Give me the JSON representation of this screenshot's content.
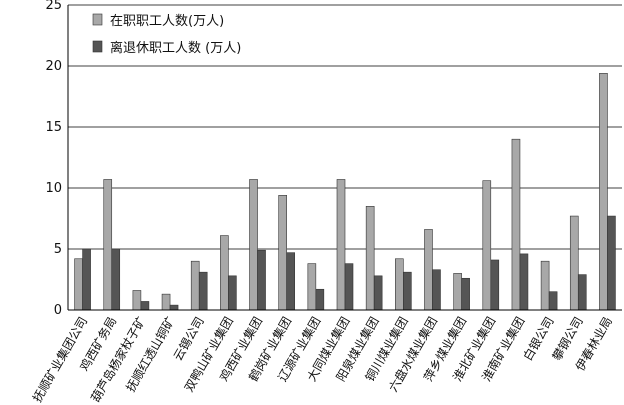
{
  "colors": {
    "series1": "#a8a8a8",
    "series2": "#555555",
    "grid": "#000000"
  },
  "chart_data": {
    "type": "bar",
    "title": "",
    "xlabel": "",
    "ylabel": "",
    "ylim": [
      0,
      25
    ],
    "yticks": [
      0,
      5,
      10,
      15,
      20,
      25
    ],
    "grid": true,
    "legend": "top-left",
    "categories": [
      "抚顺矿业集团公司",
      "鸡西矿务局",
      "葫芦岛杨家杖子矿",
      "抚顺红透山铜矿",
      "云锡公司",
      "双鸭山矿业集团",
      "鸡西矿业集团",
      "鹤岗矿业集团",
      "辽源矿业集团",
      "大同煤业集团",
      "阳泉煤业集团",
      "铜川煤业集团",
      "六盘水煤业集团",
      "萍乡煤业集团",
      "淮北矿业集团",
      "淮南矿业集团",
      "白银公司",
      "攀钢公司",
      "伊春林业局"
    ],
    "series": [
      {
        "name": "在职职工人数(万人)",
        "values": [
          4.2,
          10.7,
          1.6,
          1.3,
          4.0,
          6.1,
          10.7,
          9.4,
          3.8,
          10.7,
          8.5,
          4.2,
          6.6,
          3.0,
          10.6,
          14.0,
          4.0,
          7.7,
          19.4
        ]
      },
      {
        "name": "离退休职工人数 (万人)",
        "values": [
          5.0,
          5.0,
          0.7,
          0.4,
          3.1,
          2.8,
          4.9,
          4.7,
          1.7,
          3.8,
          2.8,
          3.1,
          3.3,
          2.6,
          4.1,
          4.6,
          1.5,
          2.9,
          7.7
        ]
      }
    ]
  }
}
